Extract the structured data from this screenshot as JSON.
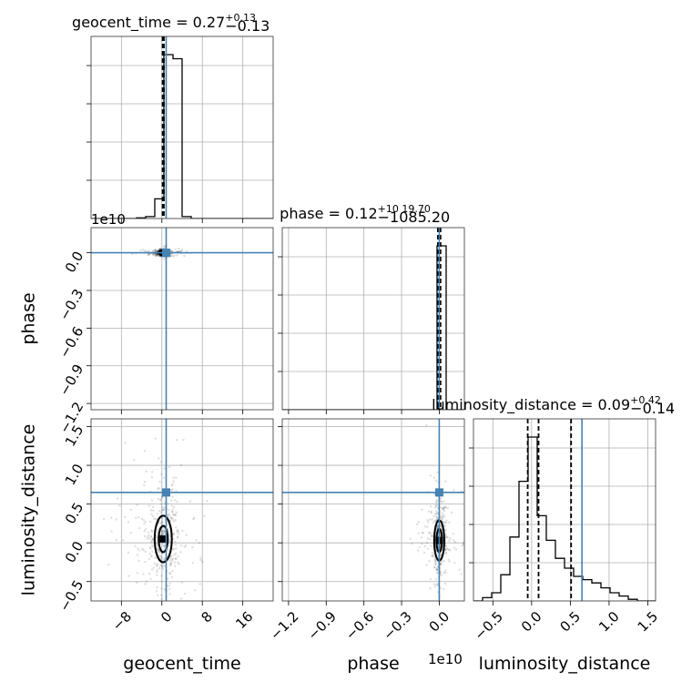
{
  "colors": {
    "truth": "#4682b4",
    "histogram": "#000000",
    "grid": "#b0b0b0",
    "samples": "#000000"
  },
  "chart_data": {
    "type": "corner",
    "parameters": [
      "geocent_time",
      "phase",
      "luminosity_distance"
    ],
    "truth": {
      "geocent_time": 0.85,
      "phase": 0.0,
      "luminosity_distance": 0.65
    },
    "titles": [
      {
        "param": "geocent_time",
        "prefix": "geocent_time = 0.27",
        "sup": "+0.13",
        "sub": "−0.13"
      },
      {
        "param": "phase",
        "prefix": "phase = 0.12",
        "sup": "+10 19.70",
        "sub": "−1085.20"
      },
      {
        "param": "luminosity_distance",
        "prefix": "luminosity_distance = 0.09",
        "sup": "+0.42",
        "sub": "−0.14"
      }
    ],
    "axis_labels": {
      "x": [
        "geocent_time",
        "phase",
        "luminosity_distance"
      ],
      "y": [
        "phase",
        "luminosity_distance"
      ]
    },
    "offset_labels": {
      "phase_y": "1e10",
      "phase_x": "1e10"
    },
    "ranges": {
      "geocent_time": [
        -14,
        22
      ],
      "phase": [
        -1.25,
        0.2
      ],
      "luminosity_distance": [
        -0.75,
        1.6
      ]
    },
    "ticks": {
      "geocent_time": {
        "values": [
          -8,
          0,
          8,
          16
        ],
        "labels": [
          "−8",
          "0",
          "8",
          "16"
        ]
      },
      "phase": {
        "values": [
          -1.2,
          -0.9,
          -0.6,
          -0.3,
          0.0
        ],
        "labels": [
          "−1.2",
          "−0.9",
          "−0.6",
          "−0.3",
          "0.0"
        ]
      },
      "luminosity_distance_y": {
        "values": [
          -0.5,
          0.0,
          0.5,
          1.0,
          1.5
        ],
        "labels": [
          "−0.5",
          "0.0",
          "0.5",
          "1.0",
          "1.5"
        ]
      },
      "luminosity_distance_x": {
        "values": [
          -0.5,
          0.0,
          0.5,
          1.0,
          1.5
        ],
        "labels": [
          "−0.5",
          "0.0",
          "0.5",
          "1.0",
          "1.5"
        ]
      }
    },
    "marginals": {
      "geocent_time": {
        "bins": [
          -14,
          -12.2,
          -10.4,
          -8.6,
          -6.8,
          -5,
          -3.2,
          -1.4,
          0.4,
          2.2,
          4,
          5.8,
          7.6,
          9.4,
          11.2,
          13,
          14.8,
          16.6,
          18.4,
          20.2,
          22
        ],
        "counts": [
          0,
          0,
          0,
          0,
          0,
          0.004,
          0.012,
          0.12,
          1.0,
          0.975,
          0.012,
          0,
          0,
          0,
          0,
          0,
          0,
          0,
          0,
          0
        ],
        "quantiles": [
          0.14,
          0.27,
          0.4
        ]
      },
      "phase": {
        "bins": [
          -1.25,
          -1.1775,
          -1.105,
          -1.0325,
          -0.96,
          -0.8875,
          -0.815,
          -0.7425,
          -0.67,
          -0.5975,
          -0.525,
          -0.4525,
          -0.38,
          -0.3075,
          -0.235,
          -0.1625,
          -0.09,
          -0.0175,
          0.055,
          0.1275,
          0.2
        ],
        "counts": [
          0,
          0,
          0,
          0,
          0,
          0,
          0,
          0,
          0,
          0,
          0,
          0,
          0,
          0,
          0,
          0,
          0,
          1.0,
          0,
          0
        ],
        "quantiles": [
          -0.0108,
          0.0,
          0.0102
        ]
      },
      "luminosity_distance": {
        "bins": [
          -0.75,
          -0.6325,
          -0.515,
          -0.3975,
          -0.28,
          -0.1625,
          -0.045,
          0.0725,
          0.19,
          0.3075,
          0.425,
          0.5425,
          0.66,
          0.7775,
          0.895,
          1.0125,
          1.13,
          1.2475,
          1.365,
          1.4825,
          1.6
        ],
        "counts": [
          0,
          0.02,
          0.05,
          0.16,
          0.39,
          0.73,
          1.0,
          0.52,
          0.37,
          0.26,
          0.2,
          0.15,
          0.13,
          0.11,
          0.08,
          0.05,
          0.03,
          0.01,
          0,
          0
        ],
        "quantiles": [
          -0.05,
          0.09,
          0.51
        ]
      }
    },
    "contours": {
      "geocent_time__phase": {
        "center": [
          0.27,
          0.0
        ],
        "inner": [
          0.4,
          0.006
        ],
        "outer": [
          0.9,
          0.02
        ]
      },
      "geocent_time__luminosity_distance": {
        "center": [
          0.27,
          0.05
        ],
        "inner": [
          0.9,
          0.17
        ],
        "outer": [
          1.7,
          0.3
        ]
      },
      "phase__luminosity_distance": {
        "center": [
          0.0,
          0.03
        ],
        "inner": [
          0.015,
          0.15
        ],
        "outer": [
          0.04,
          0.26
        ]
      }
    },
    "grid": true
  }
}
